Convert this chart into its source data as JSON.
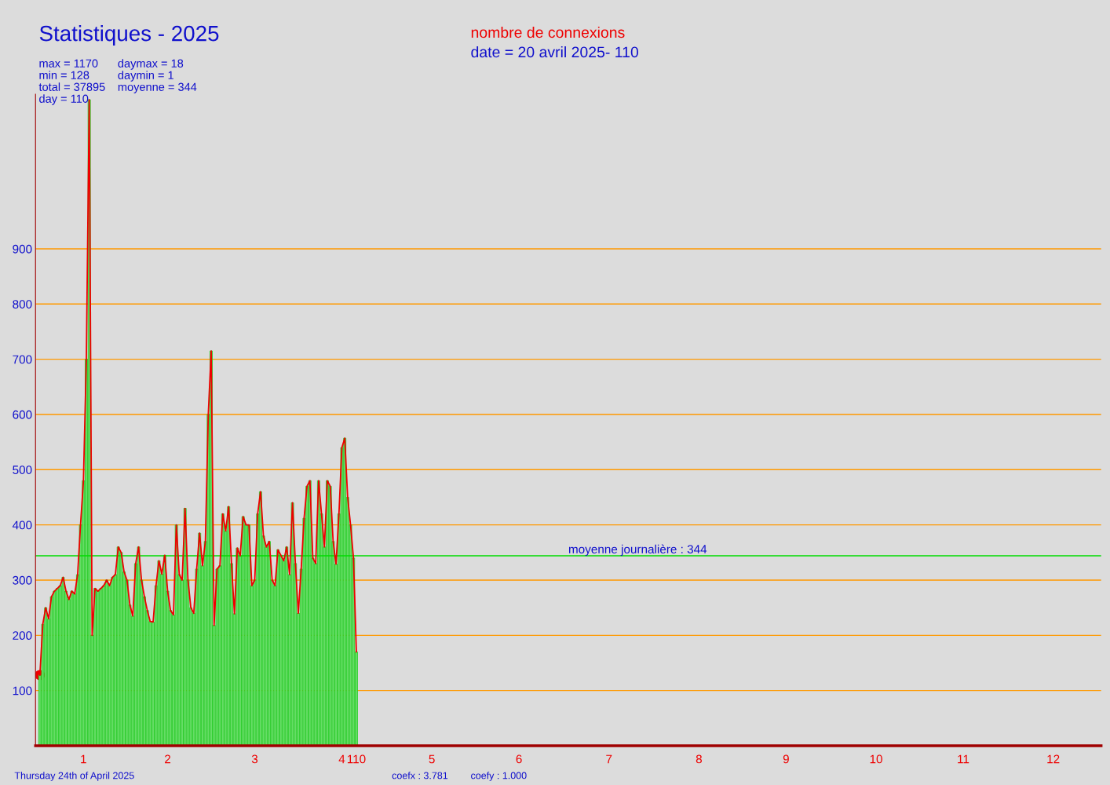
{
  "chart_data": {
    "type": "bar",
    "title": "Statistiques - 2025",
    "subtitle": "nombre de connexions",
    "categories": [
      null,
      null,
      null,
      null,
      null,
      null,
      null,
      null,
      null,
      null,
      null,
      null,
      null,
      null,
      null,
      "1",
      null,
      null,
      null,
      null,
      null,
      null,
      null,
      null,
      null,
      null,
      null,
      null,
      null,
      null,
      null,
      null,
      null,
      null,
      null,
      null,
      null,
      null,
      null,
      null,
      null,
      null,
      null,
      null,
      "2",
      null,
      null,
      null,
      null,
      null,
      null,
      null,
      null,
      null,
      null,
      null,
      null,
      null,
      null,
      null,
      null,
      null,
      null,
      null,
      null,
      null,
      null,
      null,
      null,
      null,
      null,
      null,
      null,
      null,
      "3",
      null,
      null,
      null,
      null,
      null,
      null,
      null,
      null,
      null,
      null,
      null,
      null,
      null,
      null,
      null,
      null,
      null,
      null,
      null,
      null,
      null,
      null,
      null,
      null,
      null,
      null,
      null,
      null,
      null,
      "4",
      null,
      null,
      null,
      null,
      "110",
      null,
      null,
      null,
      null,
      null,
      null,
      null,
      null,
      null,
      null,
      null,
      null,
      null,
      null,
      null,
      null,
      null,
      null,
      null,
      null,
      null,
      null,
      null,
      null,
      null,
      "5",
      null,
      null,
      null,
      null,
      null,
      null,
      null,
      null,
      null,
      null,
      null,
      null,
      null,
      null,
      null,
      null,
      null,
      null,
      null,
      null,
      null,
      null,
      null,
      null,
      null,
      null,
      null,
      null,
      null,
      "6",
      null,
      null,
      null,
      null,
      null,
      null,
      null,
      null,
      null,
      null,
      null,
      null,
      null,
      null,
      null,
      null,
      null,
      null,
      null,
      null,
      null,
      null,
      null,
      null,
      null,
      null,
      null,
      null,
      null,
      null,
      "7",
      null,
      null,
      null,
      null,
      null,
      null,
      null,
      null,
      null,
      null,
      null,
      null,
      null,
      null,
      null,
      null,
      null,
      null,
      null,
      null,
      null,
      null,
      null,
      null,
      null,
      null,
      null,
      null,
      null,
      null,
      "8",
      null,
      null,
      null,
      null,
      null,
      null,
      null,
      null,
      null,
      null,
      null,
      null,
      null,
      null,
      null,
      null,
      null,
      null,
      null,
      null,
      null,
      null,
      null,
      null,
      null,
      null,
      null,
      null,
      null,
      "9",
      null,
      null,
      null,
      null,
      null,
      null,
      null,
      null,
      null,
      null,
      null,
      null,
      null,
      null,
      null,
      null,
      null,
      null,
      null,
      null,
      null,
      null,
      null,
      null,
      null,
      null,
      null,
      null,
      null,
      null,
      "10",
      null,
      null,
      null,
      null,
      null,
      null,
      null,
      null,
      null,
      null,
      null,
      null,
      null,
      null,
      null,
      null,
      null,
      null,
      null,
      null,
      null,
      null,
      null,
      null,
      null,
      null,
      null,
      null,
      null,
      "11",
      null,
      null,
      null,
      null,
      null,
      null,
      null,
      null,
      null,
      null,
      null,
      null,
      null,
      null,
      null,
      null,
      null,
      null,
      null,
      null,
      null,
      null,
      null,
      null,
      null,
      null,
      null,
      null,
      null,
      null,
      "12",
      null,
      null,
      null,
      null,
      null,
      null,
      null,
      null,
      null,
      null,
      null,
      null,
      null,
      null,
      null,
      null
    ],
    "series": [
      {
        "color": "#66dd66",
        "values": [
          128,
          220,
          250,
          230,
          270,
          280,
          285,
          290,
          305,
          280,
          265,
          280,
          275,
          310,
          400,
          480,
          700,
          1170,
          200,
          285,
          280,
          285,
          290,
          300,
          290,
          305,
          310,
          360,
          350,
          315,
          300,
          255,
          235,
          330,
          360,
          300,
          270,
          245,
          225,
          224,
          290,
          335,
          311,
          345,
          280,
          245,
          237,
          400,
          310,
          300,
          430,
          300,
          250,
          240,
          320,
          385,
          326,
          370,
          600,
          715,
          218,
          320,
          326,
          420,
          389,
          433,
          330,
          239,
          358,
          344,
          415,
          400,
          400,
          290,
          300,
          420,
          460,
          380,
          360,
          370,
          300,
          290,
          355,
          345,
          335,
          360,
          310,
          440,
          330,
          240,
          320,
          412,
          470,
          480,
          340,
          330,
          480,
          420,
          360,
          480,
          470,
          370,
          329,
          420,
          540,
          557,
          450,
          400,
          340,
          170,
          null,
          null,
          null,
          null,
          null,
          null,
          null,
          null,
          null,
          null,
          null,
          null,
          null,
          null,
          null,
          null,
          null,
          null,
          null,
          null,
          null,
          null,
          null,
          null,
          null,
          null,
          null,
          null,
          null,
          null,
          null,
          null,
          null,
          null,
          null,
          null,
          null,
          null,
          null,
          null,
          null,
          null,
          null,
          null,
          null,
          null,
          null,
          null,
          null,
          null,
          null,
          null,
          null,
          null,
          null,
          null,
          null,
          null,
          null,
          null,
          null,
          null,
          null,
          null,
          null,
          null,
          null,
          null,
          null,
          null,
          null,
          null,
          null,
          null,
          null,
          null,
          null,
          null,
          null,
          null,
          null,
          null,
          null,
          null,
          null,
          null,
          null,
          null,
          null,
          null,
          null,
          null,
          null,
          null,
          null,
          null,
          null,
          null,
          null,
          null,
          null,
          null,
          null,
          null,
          null,
          null,
          null,
          null,
          null,
          null,
          null,
          null,
          null,
          null,
          null,
          null,
          null,
          null,
          null,
          null,
          null,
          null,
          null,
          null,
          null,
          null,
          null,
          null,
          null,
          null,
          null,
          null,
          null,
          null,
          null,
          null,
          null,
          null,
          null,
          null,
          null,
          null,
          null,
          null,
          null,
          null,
          null,
          null,
          null,
          null,
          null,
          null,
          null,
          null,
          null,
          null,
          null,
          null,
          null,
          null,
          null,
          null,
          null,
          null,
          null,
          null,
          null,
          null,
          null,
          null,
          null,
          null,
          null,
          null,
          null,
          null,
          null,
          null,
          null,
          null,
          null,
          null,
          null,
          null,
          null,
          null,
          null,
          null,
          null,
          null,
          null,
          null,
          null,
          null,
          null,
          null,
          null,
          null,
          null,
          null,
          null,
          null,
          null,
          null,
          null,
          null,
          null,
          null,
          null,
          null,
          null,
          null,
          null,
          null,
          null,
          null,
          null,
          null,
          null,
          null,
          null,
          null,
          null,
          null,
          null,
          null,
          null,
          null,
          null,
          null,
          null,
          null,
          null,
          null,
          null,
          null,
          null,
          null,
          null,
          null,
          null,
          null,
          null,
          null,
          null,
          null,
          null,
          null,
          null,
          null,
          null,
          null,
          null,
          null,
          null,
          null
        ]
      },
      {
        "type": "line",
        "color": "#ee0000",
        "values": [
          128,
          220,
          250,
          230,
          270,
          280,
          285,
          290,
          305,
          280,
          265,
          280,
          275,
          310,
          400,
          480,
          700,
          1170,
          200,
          285,
          280,
          285,
          290,
          300,
          290,
          305,
          310,
          360,
          350,
          315,
          300,
          255,
          235,
          330,
          360,
          300,
          270,
          245,
          225,
          224,
          290,
          335,
          311,
          345,
          280,
          245,
          237,
          400,
          310,
          300,
          430,
          300,
          250,
          240,
          320,
          385,
          326,
          370,
          600,
          715,
          218,
          320,
          326,
          420,
          389,
          433,
          330,
          239,
          358,
          344,
          415,
          400,
          400,
          290,
          300,
          420,
          460,
          380,
          360,
          370,
          300,
          290,
          355,
          345,
          335,
          360,
          310,
          440,
          330,
          240,
          320,
          412,
          470,
          480,
          340,
          330,
          480,
          420,
          360,
          480,
          470,
          370,
          329,
          420,
          540,
          557,
          450,
          400,
          340,
          170,
          null,
          null,
          null,
          null,
          null,
          null,
          null,
          null,
          null,
          null,
          null,
          null,
          null,
          null,
          null,
          null,
          null,
          null,
          null,
          null,
          null,
          null,
          null,
          null,
          null,
          null,
          null,
          null,
          null,
          null,
          null,
          null,
          null,
          null,
          null,
          null,
          null,
          null,
          null,
          null,
          null,
          null,
          null,
          null,
          null,
          null,
          null,
          null,
          null,
          null,
          null,
          null,
          null,
          null,
          null,
          null,
          null,
          null,
          null,
          null,
          null,
          null,
          null,
          null,
          null,
          null,
          null,
          null,
          null,
          null,
          null,
          null,
          null,
          null,
          null,
          null,
          null,
          null,
          null,
          null,
          null,
          null,
          null,
          null,
          null,
          null,
          null,
          null,
          null,
          null,
          null,
          null,
          null,
          null,
          null,
          null,
          null,
          null,
          null,
          null,
          null,
          null,
          null,
          null,
          null,
          null,
          null,
          null,
          null,
          null,
          null,
          null,
          null,
          null,
          null,
          null,
          null,
          null,
          null,
          null,
          null,
          null,
          null,
          null,
          null,
          null,
          null,
          null,
          null,
          null,
          null,
          null,
          null,
          null,
          null,
          null,
          null,
          null,
          null,
          null,
          null,
          null,
          null,
          null,
          null,
          null,
          null,
          null,
          null,
          null,
          null,
          null,
          null,
          null,
          null,
          null,
          null,
          null,
          null,
          null,
          null,
          null,
          null,
          null,
          null,
          null,
          null,
          null,
          null,
          null,
          null,
          null,
          null,
          null,
          null,
          null,
          null,
          null,
          null,
          null,
          null,
          null,
          null,
          null,
          null,
          null,
          null,
          null,
          null,
          null,
          null,
          null,
          null,
          null,
          null,
          null,
          null,
          null,
          null,
          null,
          null,
          null,
          null,
          null,
          null,
          null,
          null,
          null,
          null,
          null,
          null,
          null,
          null,
          null,
          null,
          null,
          null,
          null,
          null,
          null,
          null,
          null,
          null,
          null,
          null,
          null,
          null,
          null,
          null,
          null,
          null,
          null,
          null,
          null,
          null,
          null,
          null,
          null,
          null,
          null,
          null,
          null,
          null,
          null,
          null,
          null,
          null,
          null,
          null,
          null,
          null,
          null,
          null,
          null,
          null,
          null
        ]
      },
      {
        "type": "scatter",
        "color": "#ee0000",
        "marker": "circle",
        "values": [
          128,
          null,
          null,
          null,
          null,
          null,
          null,
          null,
          null,
          null,
          null,
          null,
          null,
          null,
          null,
          null,
          null,
          null,
          null,
          null,
          null,
          null,
          null,
          null,
          null,
          null,
          null,
          null,
          null,
          null,
          null,
          null,
          null,
          null,
          null,
          null,
          null,
          null,
          null,
          null,
          null,
          null,
          null,
          null,
          null,
          null,
          null,
          null,
          null,
          null,
          null,
          null,
          null,
          null,
          null,
          null,
          null,
          null,
          null,
          null,
          null,
          null,
          null,
          null,
          null,
          null,
          null,
          null,
          null,
          null,
          null,
          null,
          null,
          null,
          null,
          null,
          null,
          null,
          null,
          null,
          null,
          null,
          null,
          null,
          null,
          null,
          null,
          null,
          null,
          null,
          null,
          null,
          null,
          null,
          null,
          null,
          null,
          null,
          null,
          null,
          null,
          null,
          null,
          null,
          null,
          null,
          null,
          null,
          null,
          null,
          null,
          null,
          null,
          null,
          null,
          null,
          null,
          null,
          null,
          null,
          null,
          null,
          null,
          null,
          null,
          null,
          null,
          null,
          null,
          null,
          null,
          null,
          null,
          null,
          null,
          null,
          null,
          null,
          null,
          null,
          null,
          null,
          null,
          null,
          null,
          null,
          null,
          null,
          null,
          null,
          null,
          null,
          null,
          null,
          null,
          null,
          null,
          null,
          null,
          null,
          null,
          null,
          null,
          null,
          null,
          null,
          null,
          null,
          null,
          null,
          null,
          null,
          null,
          null,
          null,
          null,
          null,
          null,
          null,
          null,
          null,
          null,
          null,
          null,
          null,
          null,
          null,
          null,
          null,
          null,
          null,
          null,
          null,
          null,
          null,
          null,
          null,
          null,
          null,
          null,
          null,
          null,
          null,
          null,
          null,
          null,
          null,
          null,
          null,
          null,
          null,
          null,
          null,
          null,
          null,
          null,
          null,
          null,
          null,
          null,
          null,
          null,
          null,
          null,
          null,
          null,
          null,
          null,
          null,
          null,
          null,
          null,
          null,
          null,
          null,
          null,
          null,
          null,
          null,
          null,
          null,
          null,
          null,
          null,
          null,
          null,
          null,
          null,
          null,
          null,
          null,
          null,
          null,
          null,
          null,
          null,
          null,
          null,
          null,
          null,
          null,
          null,
          null,
          null,
          null,
          null,
          null,
          null,
          null,
          null,
          null,
          null,
          null,
          null,
          null,
          null,
          null,
          null,
          null,
          null,
          null,
          null,
          null,
          null,
          null,
          null,
          null,
          null,
          null,
          null,
          null,
          null,
          null,
          null,
          null,
          null,
          null,
          null,
          null,
          null,
          null,
          null,
          null,
          null,
          null,
          null,
          null,
          null,
          null,
          null,
          null,
          null,
          null,
          null,
          null,
          null,
          null,
          null,
          null,
          null,
          null,
          null,
          null,
          null,
          null,
          null,
          null,
          null,
          null,
          null,
          null,
          null,
          null,
          null,
          null,
          null,
          null,
          null,
          null,
          null,
          null,
          null,
          null,
          null,
          null,
          null,
          null,
          null,
          null,
          null,
          null,
          null,
          null,
          null,
          null,
          null,
          null,
          null,
          null,
          null,
          null,
          null,
          null,
          null,
          null,
          null
        ]
      }
    ],
    "ylim": [
      0,
      1180
    ],
    "yticks": [
      100,
      200,
      300,
      400,
      500,
      600,
      700,
      800,
      900
    ],
    "grid": "y",
    "ref_lines": [
      {
        "axis": "y",
        "value": 344,
        "label": "moyenne journalière : 344",
        "color": "#00dd00"
      }
    ],
    "annotations": [
      "date = 20 avril 2025- 110",
      "max = 1170",
      "min = 128",
      "total = 37895",
      "day = 110",
      "daymax = 18",
      "daymin = 1",
      "moyenne = 344",
      "Thursday 24th of April 2025",
      "coefx : 3.781",
      "coefy : 1.000"
    ]
  }
}
